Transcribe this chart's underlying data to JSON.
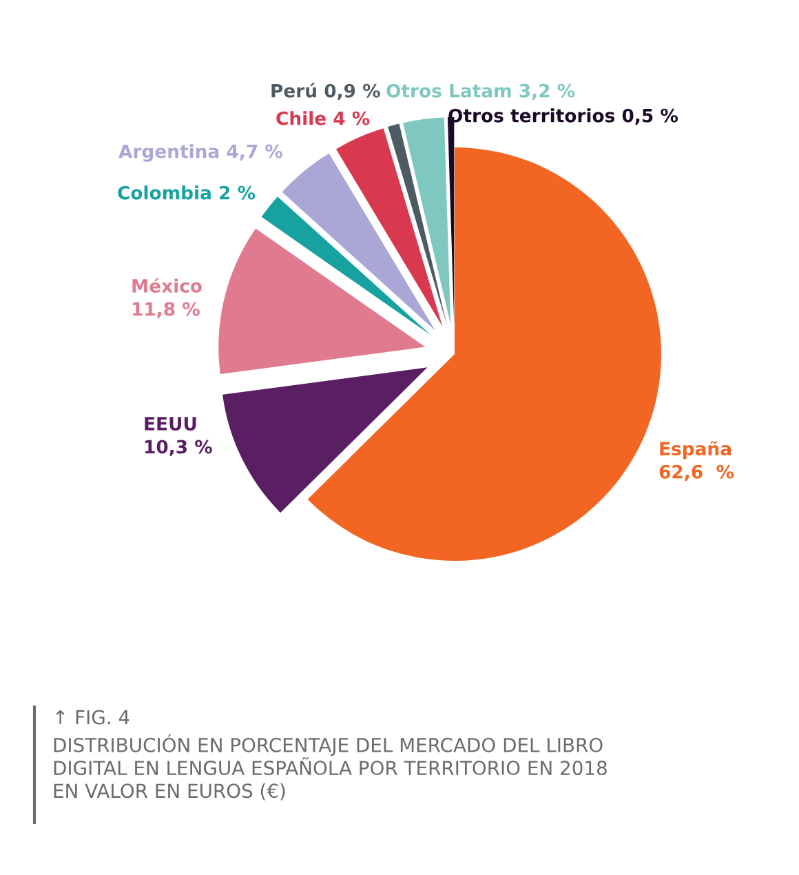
{
  "chart_data": {
    "type": "pie",
    "categories": [
      "España",
      "EEUU",
      "México",
      "Colombia",
      "Argentina",
      "Chile",
      "Perú",
      "Otros Latam",
      "Otros territorios"
    ],
    "values": [
      62.6,
      10.3,
      11.8,
      2,
      4.7,
      4,
      0.9,
      3.2,
      0.5
    ],
    "value_labels": [
      "62,6  %",
      "10,3 %",
      "11,8 %",
      "2 %",
      "4,7 %",
      "4 %",
      "0,9 %",
      "3,2 %",
      "0,5 %"
    ],
    "colors": [
      "#f26522",
      "#5a1f63",
      "#e07a8f",
      "#17a2a0",
      "#a9a7d6",
      "#d9394f",
      "#4f5b62",
      "#7fc8c0",
      "#1a0a26"
    ],
    "annotations": [
      "↑ FIG. 4",
      "DISTRIBUCIÓN EN PORCENTAJE DEL MERCADO DEL LIBRO\nDIGITAL EN LENGUA ESPAÑOLA POR TERRITORIO EN 2018\nEN VALOR EN EUROS (€)"
    ]
  }
}
